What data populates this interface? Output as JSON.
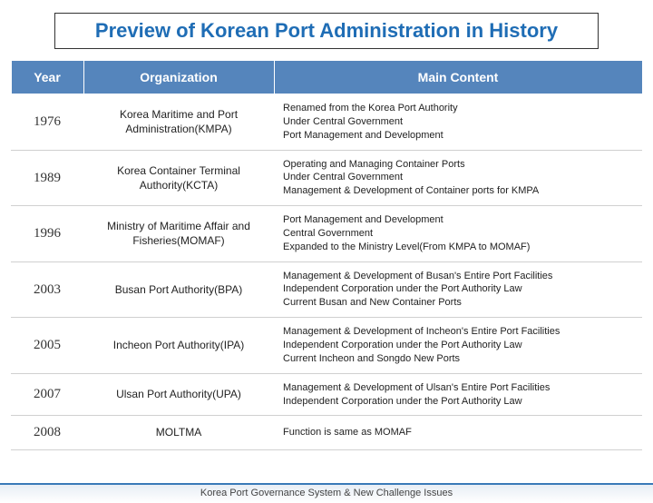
{
  "title": "Preview of Korean Port  Administration in History",
  "colors": {
    "title_text": "#1f6db5",
    "header_bg": "#5585bc",
    "header_text": "#ffffff",
    "row_border": "#d0d0d0",
    "footer_rule": "#3a7ab8"
  },
  "table": {
    "columns": [
      "Year",
      "Organization",
      "Main Content"
    ],
    "rows": [
      {
        "year": "1976",
        "org": "Korea Maritime and Port Administration(KMPA)",
        "main": "Renamed from the Korea Port Authority\nUnder Central Government\nPort Management  and Development"
      },
      {
        "year": "1989",
        "org": "Korea Container Terminal Authority(KCTA)",
        "main": "Operating and Managing Container Ports\nUnder Central Government\nManagement & Development of Container ports for KMPA"
      },
      {
        "year": "1996",
        "org": "Ministry of Maritime Affair and Fisheries(MOMAF)",
        "main": "Port Management and Development\nCentral Government\nExpanded to the Ministry Level(From KMPA to MOMAF)"
      },
      {
        "year": "2003",
        "org": "Busan Port Authority(BPA)",
        "main": "Management & Development of Busan's Entire Port Facilities\nIndependent Corporation under the Port Authority Law\nCurrent Busan and New Container Ports"
      },
      {
        "year": "2005",
        "org": "Incheon Port Authority(IPA)",
        "main": "Management & Development of Incheon's Entire Port Facilities\nIndependent Corporation under the Port Authority Law\nCurrent Incheon and Songdo New Ports"
      },
      {
        "year": "2007",
        "org": "Ulsan Port Authority(UPA)",
        "main": "Management & Development of Ulsan's Entire Port Facilities\nIndependent Corporation under the Port Authority Law"
      },
      {
        "year": "2008",
        "org": "MOLTMA",
        "main": "Function is same as MOMAF"
      }
    ]
  },
  "footer": "Korea Port Governance System & New Challenge Issues"
}
